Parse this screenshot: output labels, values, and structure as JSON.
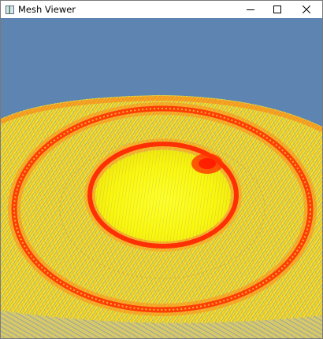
{
  "window": {
    "title": "Mesh Viewer",
    "icon": "app-window-icon",
    "controls": [
      "minimize-icon",
      "maximize-icon",
      "close-icon"
    ]
  },
  "viewport": {
    "background_color": "#5e85b2",
    "mesh_colors": {
      "low": "#ffff00",
      "mid": "#ffb21a",
      "high": "#ff1a00",
      "edge": "#6e8fa8"
    }
  }
}
